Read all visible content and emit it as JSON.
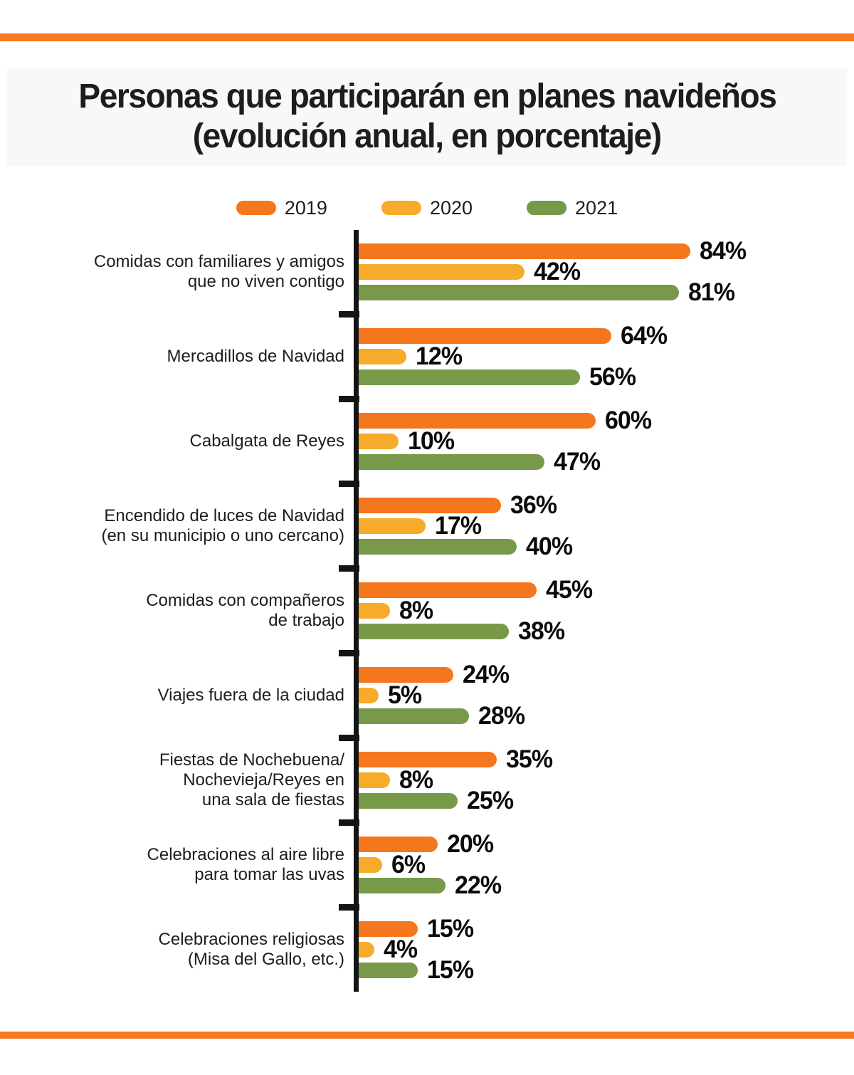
{
  "page": {
    "title": "Personas que participarán en planes navideños",
    "subtitle": "(evolución anual, en porcentaje)"
  },
  "colors": {
    "rule": "#f47b20",
    "axis": "#141414",
    "series_2019": "#f4771e",
    "series_2020": "#f6ab2a",
    "series_2021": "#78994a",
    "value_label": "#0b0b0b"
  },
  "chart_data": {
    "type": "bar",
    "orientation": "horizontal",
    "unit": "%",
    "xlim": [
      0,
      100
    ],
    "grid": false,
    "legend_position": "top-center",
    "categories": [
      {
        "lines": [
          "Comidas con familiares y amigos",
          "que no viven contigo"
        ]
      },
      {
        "lines": [
          "Mercadillos de Navidad"
        ]
      },
      {
        "lines": [
          "Cabalgata de Reyes"
        ]
      },
      {
        "lines": [
          "Encendido de luces de Navidad",
          "(en su municipio o uno cercano)"
        ]
      },
      {
        "lines": [
          "Comidas con compañeros",
          "de trabajo"
        ]
      },
      {
        "lines": [
          "Viajes fuera de la ciudad"
        ]
      },
      {
        "lines": [
          "Fiestas de Nochebuena/",
          "Nochevieja/Reyes en",
          "una sala de fiestas"
        ]
      },
      {
        "lines": [
          "Celebraciones al aire libre",
          "para tomar las uvas"
        ]
      },
      {
        "lines": [
          "Celebraciones religiosas",
          "(Misa del Gallo, etc.)"
        ]
      }
    ],
    "series": [
      {
        "name": "2019",
        "color": "#f4771e",
        "values": [
          84,
          64,
          60,
          36,
          45,
          24,
          35,
          20,
          15
        ]
      },
      {
        "name": "2020",
        "color": "#f6ab2a",
        "values": [
          42,
          12,
          10,
          17,
          8,
          5,
          8,
          6,
          4
        ]
      },
      {
        "name": "2021",
        "color": "#78994a",
        "values": [
          81,
          56,
          47,
          40,
          38,
          28,
          25,
          22,
          15
        ]
      }
    ],
    "value_label_format": "{value}%"
  }
}
